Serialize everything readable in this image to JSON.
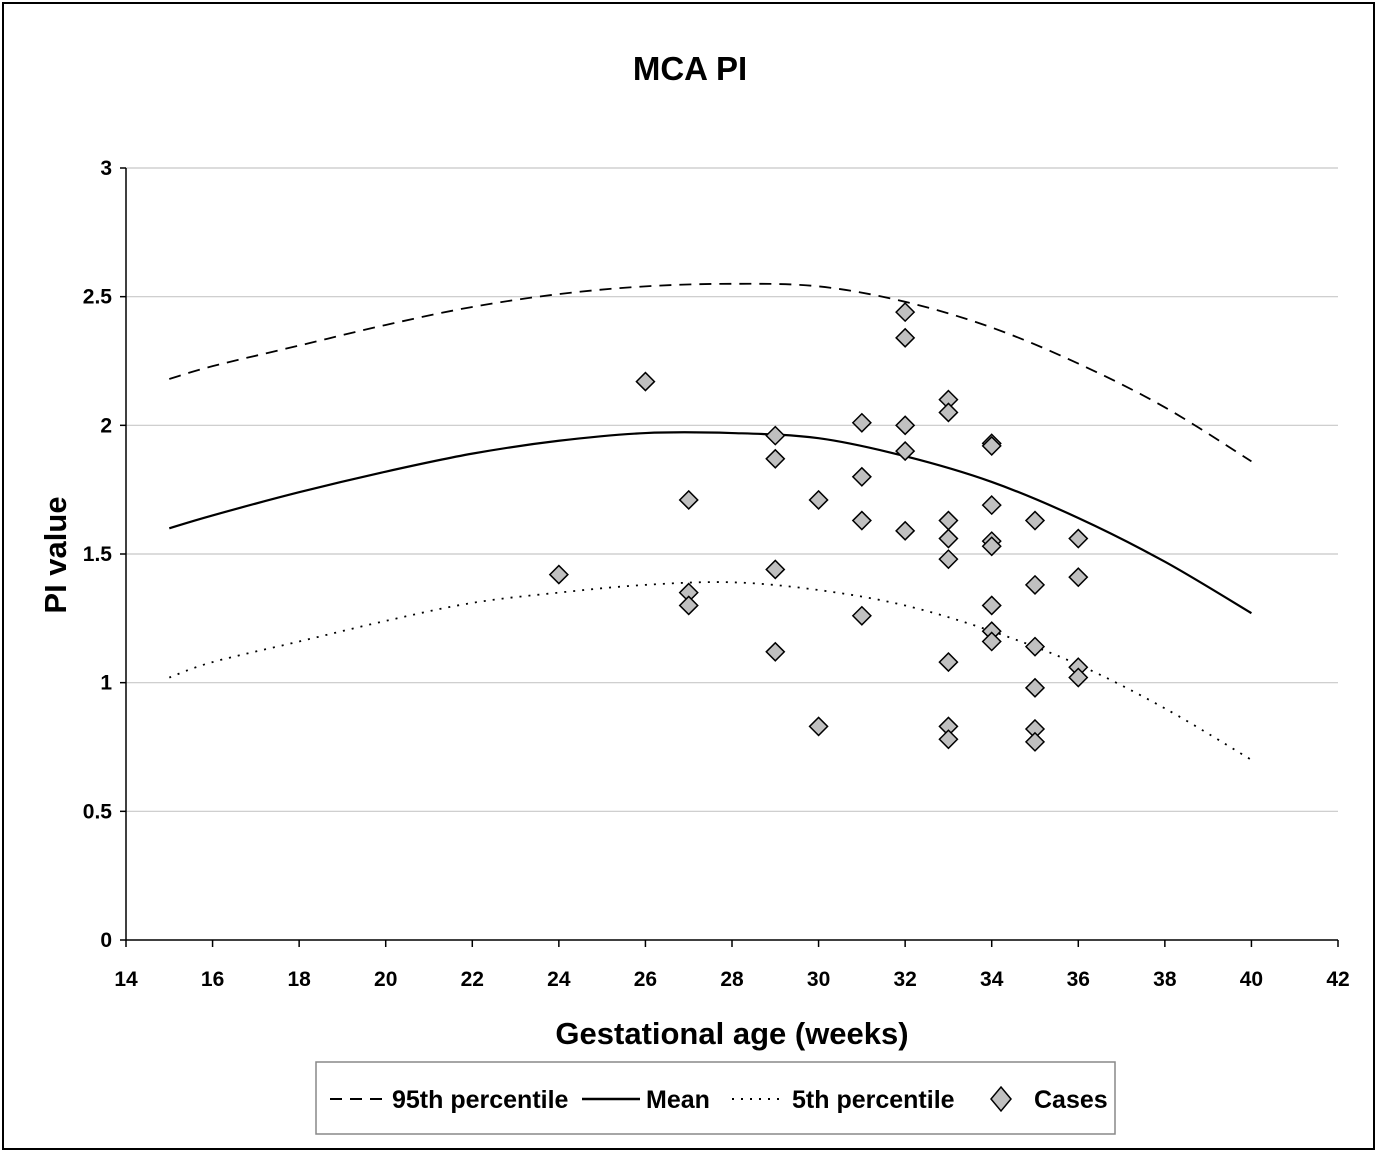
{
  "chart_data": {
    "type": "scatter",
    "title": "MCA PI",
    "xlabel": "Gestational age (weeks)",
    "ylabel": "PI value",
    "xlim": [
      14,
      42
    ],
    "ylim": [
      0,
      3
    ],
    "xticks": [
      14,
      16,
      18,
      20,
      22,
      24,
      26,
      28,
      30,
      32,
      34,
      36,
      38,
      40,
      42
    ],
    "yticks": [
      0,
      0.5,
      1,
      1.5,
      2,
      2.5,
      3
    ],
    "ytick_labels": [
      "0",
      "0.5",
      "1",
      "1.5",
      "2",
      "2.5",
      "3"
    ],
    "grid": "horizontal",
    "legend_position": "bottom",
    "series": [
      {
        "name": "95th percentile",
        "kind": "line",
        "style": "dashed",
        "x": [
          15,
          16,
          18,
          20,
          22,
          24,
          26,
          28,
          30,
          32,
          34,
          36,
          38,
          40
        ],
        "y": [
          2.18,
          2.23,
          2.31,
          2.39,
          2.46,
          2.51,
          2.54,
          2.55,
          2.54,
          2.48,
          2.38,
          2.24,
          2.07,
          1.86
        ]
      },
      {
        "name": "Mean",
        "kind": "line",
        "style": "solid",
        "x": [
          15,
          16,
          18,
          20,
          22,
          24,
          26,
          28,
          30,
          32,
          34,
          36,
          38,
          40
        ],
        "y": [
          1.6,
          1.65,
          1.74,
          1.82,
          1.89,
          1.94,
          1.97,
          1.97,
          1.95,
          1.88,
          1.78,
          1.64,
          1.47,
          1.27
        ]
      },
      {
        "name": "5th percentile",
        "kind": "line",
        "style": "dotted",
        "x": [
          15,
          16,
          18,
          20,
          22,
          24,
          26,
          28,
          30,
          32,
          34,
          36,
          38,
          40
        ],
        "y": [
          1.02,
          1.08,
          1.16,
          1.24,
          1.31,
          1.35,
          1.38,
          1.39,
          1.36,
          1.3,
          1.2,
          1.07,
          0.9,
          0.7
        ]
      },
      {
        "name": "Cases",
        "kind": "scatter",
        "marker": "diamond",
        "color": "#c0c0c0",
        "points": [
          [
            24,
            1.42
          ],
          [
            26,
            2.17
          ],
          [
            27,
            1.71
          ],
          [
            27,
            1.35
          ],
          [
            27,
            1.3
          ],
          [
            29,
            1.96
          ],
          [
            29,
            1.87
          ],
          [
            29,
            1.44
          ],
          [
            29,
            1.12
          ],
          [
            30,
            1.71
          ],
          [
            30,
            0.83
          ],
          [
            31,
            2.01
          ],
          [
            31,
            1.8
          ],
          [
            31,
            1.63
          ],
          [
            31,
            1.26
          ],
          [
            32,
            2.44
          ],
          [
            32,
            2.34
          ],
          [
            32,
            2.0
          ],
          [
            32,
            1.9
          ],
          [
            32,
            1.59
          ],
          [
            33,
            2.1
          ],
          [
            33,
            2.05
          ],
          [
            33,
            1.63
          ],
          [
            33,
            1.56
          ],
          [
            33,
            1.48
          ],
          [
            33,
            1.08
          ],
          [
            33,
            0.83
          ],
          [
            33,
            0.78
          ],
          [
            34,
            1.93
          ],
          [
            34,
            1.92
          ],
          [
            34,
            1.69
          ],
          [
            34,
            1.55
          ],
          [
            34,
            1.53
          ],
          [
            34,
            1.3
          ],
          [
            34,
            1.2
          ],
          [
            34,
            1.16
          ],
          [
            35,
            1.63
          ],
          [
            35,
            1.38
          ],
          [
            35,
            1.14
          ],
          [
            35,
            0.98
          ],
          [
            35,
            0.82
          ],
          [
            35,
            0.77
          ],
          [
            36,
            1.56
          ],
          [
            36,
            1.41
          ],
          [
            36,
            1.06
          ],
          [
            36,
            1.02
          ]
        ]
      }
    ]
  }
}
